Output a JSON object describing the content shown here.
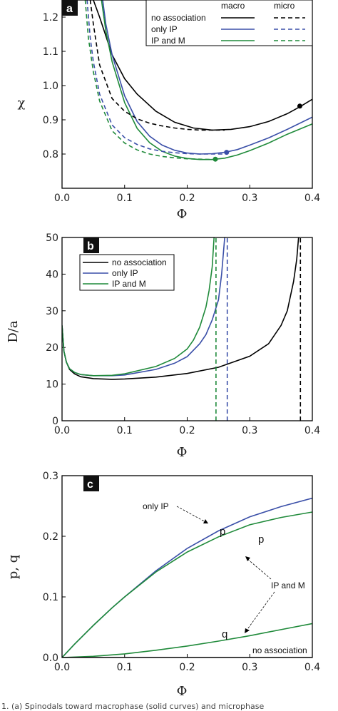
{
  "colors": {
    "none": "#000000",
    "only_ip": "#3a4fa8",
    "ip_m": "#1f8a3a"
  },
  "caption_text": "1. (a) Spinodals toward macrophase (solid curves) and microphase",
  "chart_data": [
    {
      "panel": "a",
      "type": "line",
      "xlabel": "Φ",
      "ylabel": "χ",
      "xlim": [
        0.0,
        0.4
      ],
      "ylim": [
        0.7,
        1.25
      ],
      "xticks": [
        "0.0",
        "0.1",
        "0.2",
        "0.3",
        "0.4"
      ],
      "yticks": [
        "0.8",
        "0.9",
        "1.0",
        "1.1",
        "1.2"
      ],
      "legend": {
        "placement": "top-right",
        "col_headers": [
          "macro",
          "micro"
        ],
        "entries": [
          "no association",
          "only IP",
          "IP and M"
        ]
      },
      "series": [
        {
          "name": "no association",
          "style": "solid",
          "color_key": "none",
          "x": [
            0.05,
            0.06,
            0.08,
            0.1,
            0.12,
            0.15,
            0.18,
            0.21,
            0.24,
            0.27,
            0.3,
            0.33,
            0.36,
            0.38,
            0.4
          ],
          "y": [
            1.25,
            1.2,
            1.09,
            1.02,
            0.975,
            0.925,
            0.893,
            0.876,
            0.87,
            0.872,
            0.88,
            0.895,
            0.918,
            0.938,
            0.96
          ]
        },
        {
          "name": "only IP",
          "style": "solid",
          "color_key": "only_ip",
          "x": [
            0.065,
            0.07,
            0.08,
            0.1,
            0.12,
            0.14,
            0.16,
            0.18,
            0.2,
            0.22,
            0.24,
            0.26,
            0.28,
            0.3,
            0.33,
            0.36,
            0.4
          ],
          "y": [
            1.25,
            1.18,
            1.09,
            0.97,
            0.895,
            0.852,
            0.826,
            0.811,
            0.803,
            0.8,
            0.801,
            0.805,
            0.813,
            0.826,
            0.847,
            0.872,
            0.908
          ]
        },
        {
          "name": "IP and M",
          "style": "solid",
          "color_key": "ip_m",
          "x": [
            0.063,
            0.07,
            0.08,
            0.1,
            0.12,
            0.14,
            0.16,
            0.18,
            0.2,
            0.22,
            0.24,
            0.26,
            0.28,
            0.3,
            0.33,
            0.36,
            0.4
          ],
          "y": [
            1.25,
            1.16,
            1.07,
            0.95,
            0.875,
            0.833,
            0.808,
            0.794,
            0.787,
            0.784,
            0.784,
            0.788,
            0.797,
            0.81,
            0.832,
            0.858,
            0.888
          ]
        },
        {
          "name": "no association",
          "style": "dashed",
          "color_key": "none",
          "x": [
            0.045,
            0.05,
            0.06,
            0.08,
            0.1,
            0.12,
            0.14,
            0.16,
            0.18,
            0.2,
            0.22,
            0.24,
            0.26
          ],
          "y": [
            1.25,
            1.18,
            1.06,
            0.962,
            0.925,
            0.903,
            0.89,
            0.882,
            0.876,
            0.872,
            0.87,
            0.87,
            0.87
          ]
        },
        {
          "name": "only IP",
          "style": "dashed",
          "color_key": "only_ip",
          "x": [
            0.04,
            0.045,
            0.05,
            0.06,
            0.08,
            0.1,
            0.12,
            0.14,
            0.16,
            0.18,
            0.2,
            0.22,
            0.24,
            0.26
          ],
          "y": [
            1.25,
            1.14,
            1.07,
            0.975,
            0.885,
            0.848,
            0.828,
            0.815,
            0.808,
            0.804,
            0.801,
            0.8,
            0.8,
            0.8
          ]
        },
        {
          "name": "IP and M",
          "style": "dashed",
          "color_key": "ip_m",
          "x": [
            0.037,
            0.042,
            0.05,
            0.06,
            0.08,
            0.1,
            0.12,
            0.14,
            0.16,
            0.18,
            0.2,
            0.22,
            0.24
          ],
          "y": [
            1.25,
            1.14,
            1.04,
            0.955,
            0.868,
            0.832,
            0.812,
            0.8,
            0.793,
            0.789,
            0.786,
            0.785,
            0.784
          ]
        }
      ],
      "points": [
        {
          "color_key": "none",
          "x": 0.38,
          "y": 0.94
        },
        {
          "color_key": "only_ip",
          "x": 0.263,
          "y": 0.805
        },
        {
          "color_key": "ip_m",
          "x": 0.245,
          "y": 0.785
        }
      ]
    },
    {
      "panel": "b",
      "type": "line",
      "xlabel": "Φ",
      "ylabel": "D/a",
      "xlim": [
        0.0,
        0.4
      ],
      "ylim": [
        0,
        50
      ],
      "xticks": [
        "0.0",
        "0.1",
        "0.2",
        "0.3",
        "0.4"
      ],
      "yticks": [
        "0",
        "10",
        "20",
        "30",
        "40",
        "50"
      ],
      "legend": {
        "placement": "top-left",
        "entries": [
          "no association",
          "only IP",
          "IP and M"
        ]
      },
      "series": [
        {
          "name": "no association",
          "style": "solid",
          "color_key": "none",
          "x": [
            0.0,
            0.003,
            0.007,
            0.012,
            0.02,
            0.03,
            0.05,
            0.08,
            0.1,
            0.15,
            0.2,
            0.25,
            0.3,
            0.33,
            0.35,
            0.36,
            0.37,
            0.375,
            0.378
          ],
          "y": [
            26,
            19,
            16,
            14,
            12.8,
            12.0,
            11.5,
            11.3,
            11.4,
            11.9,
            12.9,
            14.6,
            17.6,
            21,
            26,
            30,
            38,
            44,
            50
          ]
        },
        {
          "name": "only IP",
          "style": "solid",
          "color_key": "only_ip",
          "x": [
            0.0,
            0.003,
            0.007,
            0.012,
            0.02,
            0.03,
            0.05,
            0.08,
            0.1,
            0.15,
            0.18,
            0.2,
            0.22,
            0.23,
            0.24,
            0.25,
            0.255,
            0.26
          ],
          "y": [
            26,
            19,
            16,
            14.2,
            13.2,
            12.6,
            12.3,
            12.3,
            12.5,
            14,
            15.7,
            17.5,
            21,
            23.5,
            27.5,
            33,
            40,
            50
          ]
        },
        {
          "name": "IP and M",
          "style": "solid",
          "color_key": "ip_m",
          "x": [
            0.0,
            0.003,
            0.007,
            0.012,
            0.02,
            0.03,
            0.05,
            0.08,
            0.1,
            0.15,
            0.18,
            0.2,
            0.21,
            0.22,
            0.23,
            0.235,
            0.24,
            0.243
          ],
          "y": [
            26,
            19,
            16,
            14.2,
            13.2,
            12.6,
            12.3,
            12.4,
            12.8,
            14.8,
            17,
            19.6,
            22,
            25.5,
            31,
            35.5,
            42,
            50
          ]
        },
        {
          "name": "no association",
          "style": "dashed",
          "color_key": "none",
          "x": [
            0.381,
            0.381
          ],
          "y": [
            0,
            50
          ]
        },
        {
          "name": "only IP",
          "style": "dashed",
          "color_key": "only_ip",
          "x": [
            0.264,
            0.264
          ],
          "y": [
            0,
            50
          ]
        },
        {
          "name": "IP and M",
          "style": "dashed",
          "color_key": "ip_m",
          "x": [
            0.246,
            0.246
          ],
          "y": [
            0,
            50
          ]
        }
      ],
      "points": []
    },
    {
      "panel": "c",
      "type": "line",
      "xlabel": "Φ",
      "ylabel": "p, q",
      "xlim": [
        0.0,
        0.4
      ],
      "ylim": [
        0.0,
        0.3
      ],
      "xticks": [
        "0.0",
        "0.1",
        "0.2",
        "0.3",
        "0.4"
      ],
      "yticks": [
        "0.0",
        "0.1",
        "0.2",
        "0.3"
      ],
      "annotations": [
        "only IP",
        "p",
        "p",
        "IP and M",
        "q",
        "no association"
      ],
      "series": [
        {
          "name": "only IP",
          "style": "solid",
          "color_key": "only_ip",
          "x": [
            0.0,
            0.02,
            0.05,
            0.08,
            0.1,
            0.15,
            0.2,
            0.25,
            0.3,
            0.35,
            0.4
          ],
          "y": [
            0.0,
            0.022,
            0.053,
            0.082,
            0.1,
            0.143,
            0.18,
            0.209,
            0.232,
            0.249,
            0.263
          ]
        },
        {
          "name": "IP and M",
          "style": "solid",
          "color_key": "ip_m",
          "x": [
            0.0,
            0.02,
            0.05,
            0.08,
            0.1,
            0.15,
            0.2,
            0.25,
            0.3,
            0.35,
            0.4
          ],
          "y": [
            0.0,
            0.022,
            0.053,
            0.082,
            0.1,
            0.141,
            0.174,
            0.199,
            0.219,
            0.231,
            0.24
          ]
        },
        {
          "name": "IP and M",
          "style": "solid",
          "color_key": "ip_m",
          "x": [
            0.0,
            0.05,
            0.1,
            0.15,
            0.2,
            0.25,
            0.3,
            0.35,
            0.4
          ],
          "y": [
            0.0,
            0.002,
            0.006,
            0.012,
            0.019,
            0.027,
            0.036,
            0.046,
            0.056
          ]
        },
        {
          "name": "no association",
          "style": "solid",
          "color_key": "none",
          "x": [
            0.0,
            0.4
          ],
          "y": [
            0.0,
            0.0
          ]
        }
      ],
      "points": []
    }
  ]
}
